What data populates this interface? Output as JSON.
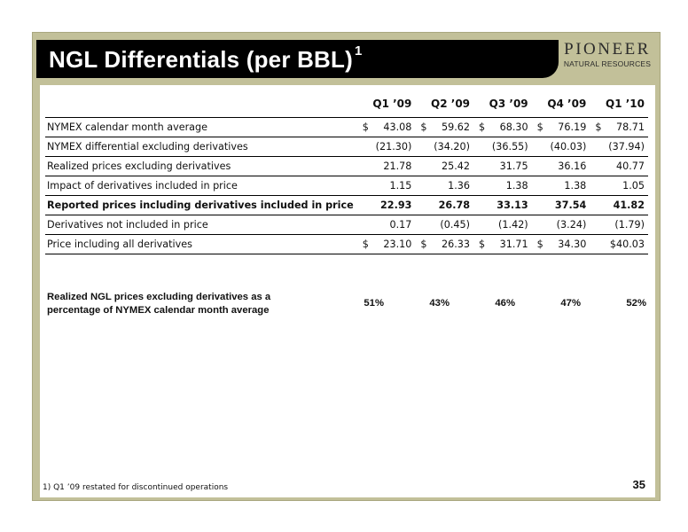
{
  "header": {
    "title": "NGL Differentials (per BBL)",
    "title_superscript": "1",
    "logo_name": "PIONEER",
    "logo_sub": "NATURAL RESOURCES"
  },
  "table": {
    "columns": [
      "Q1 ’09",
      "Q2 ’09",
      "Q3 ’09",
      "Q4 ’09",
      "Q1 ’10"
    ],
    "rows": [
      {
        "label": "NYMEX calendar month average",
        "values": [
          "43.08",
          "59.62",
          "68.30",
          "76.19",
          "78.71"
        ],
        "currency": [
          "$",
          "$",
          "$",
          "$",
          "$"
        ]
      },
      {
        "label": "NYMEX differential excluding derivatives",
        "values": [
          "(21.30)",
          "(34.20)",
          "(36.55)",
          "(40.03)",
          "(37.94)"
        ]
      },
      {
        "label": "Realized prices excluding derivatives",
        "values": [
          "21.78",
          "25.42",
          "31.75",
          "36.16",
          "40.77"
        ]
      },
      {
        "label": "Impact of derivatives included in price",
        "values": [
          "1.15",
          "1.36",
          "1.38",
          "1.38",
          "1.05"
        ]
      },
      {
        "label": "Reported prices including derivatives included in price",
        "values": [
          "22.93",
          "26.78",
          "33.13",
          "37.54",
          "41.82"
        ]
      },
      {
        "label": "Derivatives not included in price",
        "values": [
          "0.17",
          "(0.45)",
          "(1.42)",
          "(3.24)",
          "(1.79)"
        ]
      },
      {
        "label": "Price including all derivatives",
        "values": [
          "23.10",
          "26.33",
          "31.71",
          "34.30",
          "$40.03"
        ],
        "currency": [
          "$",
          "$",
          "$",
          "$",
          ""
        ]
      }
    ]
  },
  "percentage": {
    "label": "Realized NGL prices excluding derivatives as a percentage of NYMEX calendar month average",
    "values": [
      "51%",
      "43%",
      "46%",
      "47%",
      "52%"
    ]
  },
  "footnote": "1) Q1 ’09 restated for discontinued operations",
  "page_number": "35"
}
